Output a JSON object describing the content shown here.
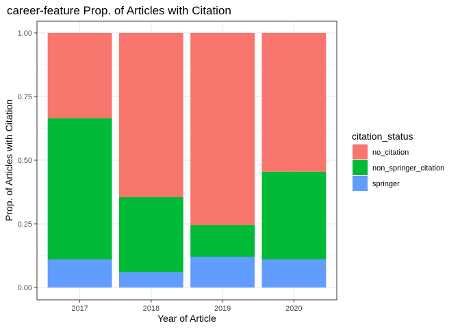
{
  "chart_data": {
    "type": "bar",
    "stacked": true,
    "title": "career-feature Prop. of Articles with Citation",
    "xlabel": "Year of Article",
    "ylabel": "Prop. of Articles with Citation",
    "categories": [
      "2017",
      "2018",
      "2019",
      "2020"
    ],
    "ylim": [
      0,
      1
    ],
    "yticks": [
      "0.00",
      "0.25",
      "0.50",
      "0.75",
      "1.00"
    ],
    "grid": true,
    "legend": {
      "title": "citation_status",
      "position": "right"
    },
    "series": [
      {
        "name": "springer",
        "color": "#619CFF",
        "values": [
          0.11,
          0.06,
          0.12,
          0.11
        ]
      },
      {
        "name": "non_springer_citation",
        "color": "#00BA38",
        "values": [
          0.555,
          0.295,
          0.125,
          0.345
        ]
      },
      {
        "name": "no_citation",
        "color": "#F8766D",
        "values": [
          0.335,
          0.645,
          0.755,
          0.545
        ]
      }
    ],
    "legend_order": [
      "no_citation",
      "non_springer_citation",
      "springer"
    ]
  }
}
